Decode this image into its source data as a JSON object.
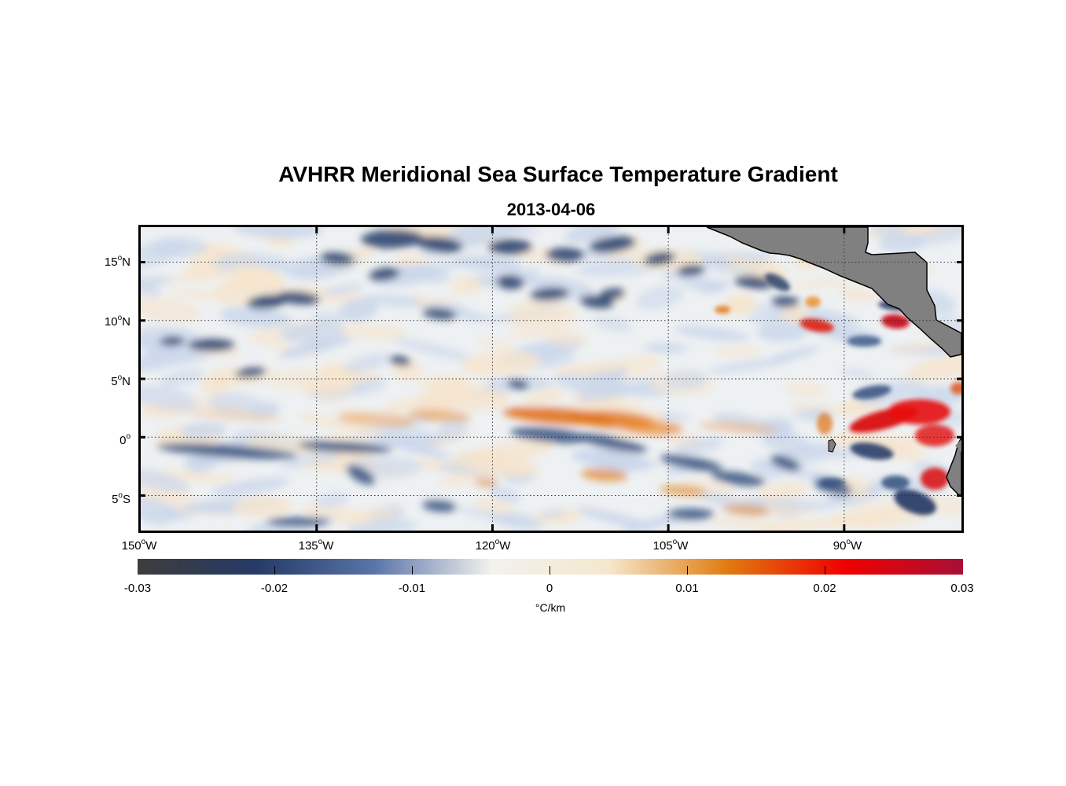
{
  "title": "AVHRR Meridional Sea Surface Temperature Gradient",
  "subtitle": "2013-04-06",
  "map": {
    "lon_range": [
      -150,
      -80
    ],
    "lat_range": [
      -8,
      18
    ],
    "y_ticks": [
      {
        "deg": "15",
        "hemi": "N"
      },
      {
        "deg": "10",
        "hemi": "N"
      },
      {
        "deg": "5",
        "hemi": "N"
      },
      {
        "deg": "0",
        "hemi": ""
      },
      {
        "deg": "5",
        "hemi": "S"
      }
    ],
    "x_ticks": [
      {
        "deg": "150",
        "hemi": "W"
      },
      {
        "deg": "135",
        "hemi": "W"
      },
      {
        "deg": "120",
        "hemi": "W"
      },
      {
        "deg": "105",
        "hemi": "W"
      },
      {
        "deg": "90",
        "hemi": "W"
      }
    ],
    "grid": "dotted",
    "land_color": "#808080"
  },
  "colorbar": {
    "tick_labels": [
      "-0.03",
      "-0.02",
      "-0.01",
      "0",
      "0.01",
      "0.02",
      "0.03"
    ],
    "units": "°C/km",
    "colors": [
      "#3d3d3d",
      "#253a66",
      "#5a74a8",
      "#f2f2ee",
      "#f5e7cc",
      "#e07c10",
      "#f00000",
      "#a80f35"
    ]
  }
}
